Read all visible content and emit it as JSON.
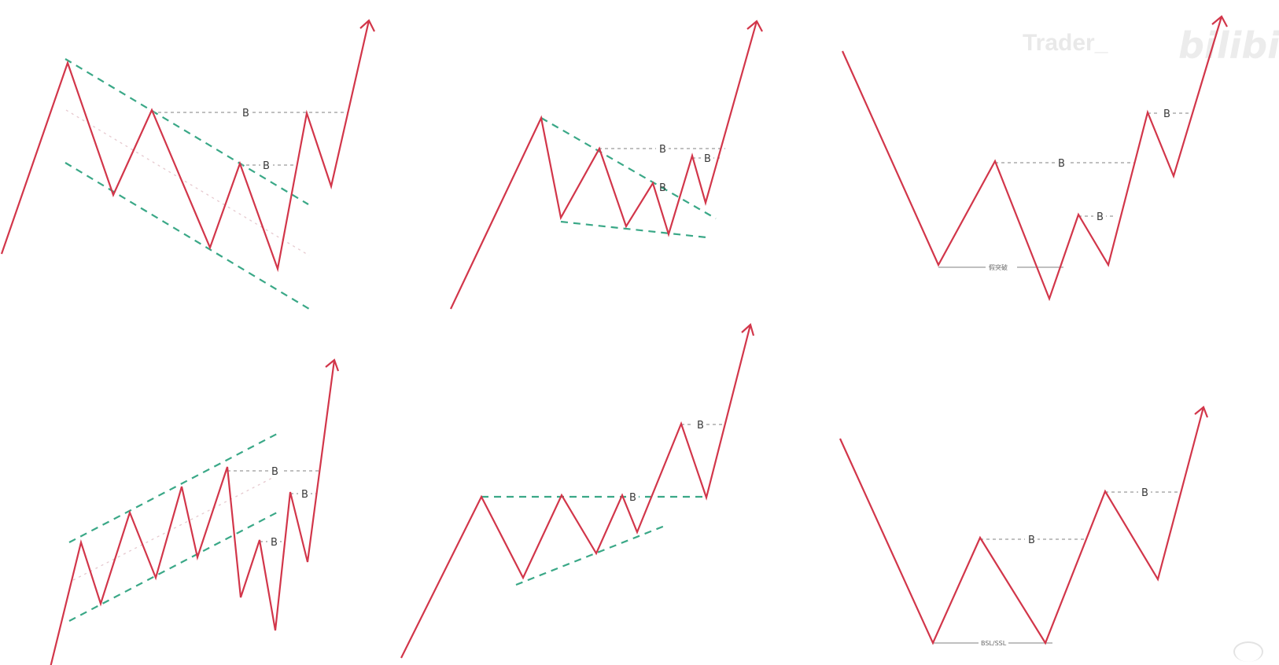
{
  "watermark": {
    "author": "Trader_",
    "platform": "bilibili"
  },
  "colors": {
    "price_path": "#d2364a",
    "trendline": "#3aa887",
    "level_line": "#9b9b9b"
  },
  "panels": [
    {
      "id": "descending-channel",
      "breakout_labels": [
        "B",
        "B"
      ]
    },
    {
      "id": "falling-wedge",
      "breakout_labels": [
        "B",
        "B",
        "B"
      ]
    },
    {
      "id": "double-bottom-sweep",
      "breakout_labels": [
        "B",
        "B",
        "B"
      ],
      "base_label": "假突破"
    },
    {
      "id": "ascending-channel",
      "breakout_labels": [
        "B",
        "B",
        "B"
      ]
    },
    {
      "id": "ascending-triangle",
      "breakout_labels": [
        "B",
        "B"
      ]
    },
    {
      "id": "double-bottom-bsl-ssl",
      "breakout_labels": [
        "B",
        "B"
      ],
      "base_label": "BSL/SSL"
    }
  ],
  "icons": {
    "corner": "replay-icon"
  }
}
